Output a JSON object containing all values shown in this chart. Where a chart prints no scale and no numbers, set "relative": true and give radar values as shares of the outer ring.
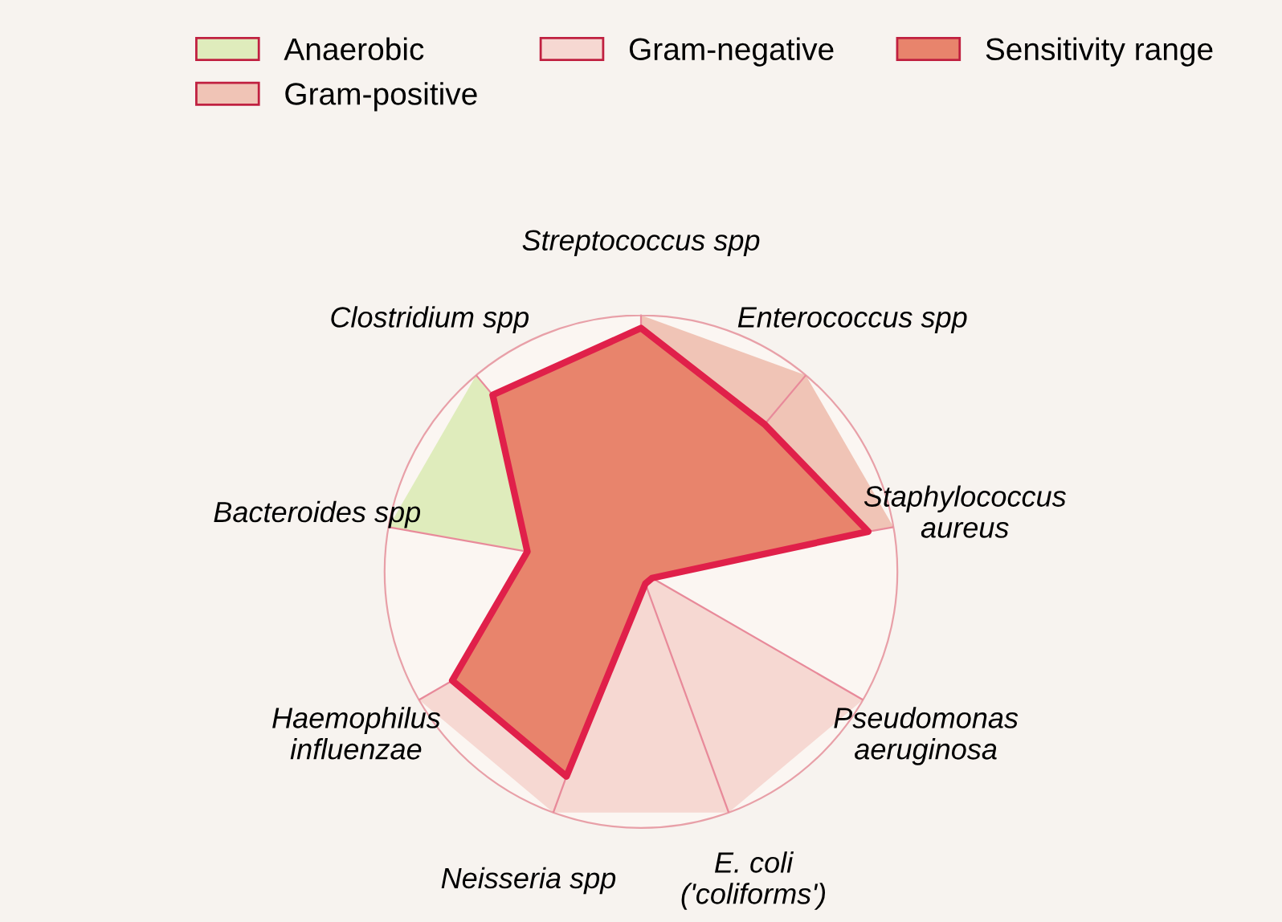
{
  "chart_data": {
    "type": "radar",
    "relative": true,
    "legend": "top",
    "grid": "x",
    "categories": [
      "Streptococcus spp",
      "Enterococcus spp",
      "Staphylococcus\naureus",
      "Pseudomonas\naeruginosa",
      "E. coli\n('coliforms')",
      "Neisseria spp",
      "Haemophilus\ninfluenzae",
      "Bacteroides spp",
      "Clostridium spp"
    ],
    "series": [
      {
        "name": "Anaerobic",
        "type": "area",
        "color": "#dfecbc",
        "values": [
          null,
          null,
          null,
          null,
          null,
          null,
          null,
          1,
          1
        ]
      },
      {
        "name": "Gram-positive",
        "type": "area",
        "color": "#f0c4b6",
        "values": [
          1,
          1,
          1,
          null,
          null,
          null,
          null,
          null,
          null
        ]
      },
      {
        "name": "Gram-negative",
        "type": "area",
        "color": "#f6d8d2",
        "values": [
          null,
          null,
          null,
          1,
          1,
          1,
          1,
          null,
          null
        ]
      },
      {
        "name": "Sensitivity range",
        "color": "#e8846c",
        "values": [
          0.95,
          0.75,
          0.9,
          0.05,
          0.05,
          0.85,
          0.85,
          0.45,
          0.9
        ]
      }
    ]
  }
}
